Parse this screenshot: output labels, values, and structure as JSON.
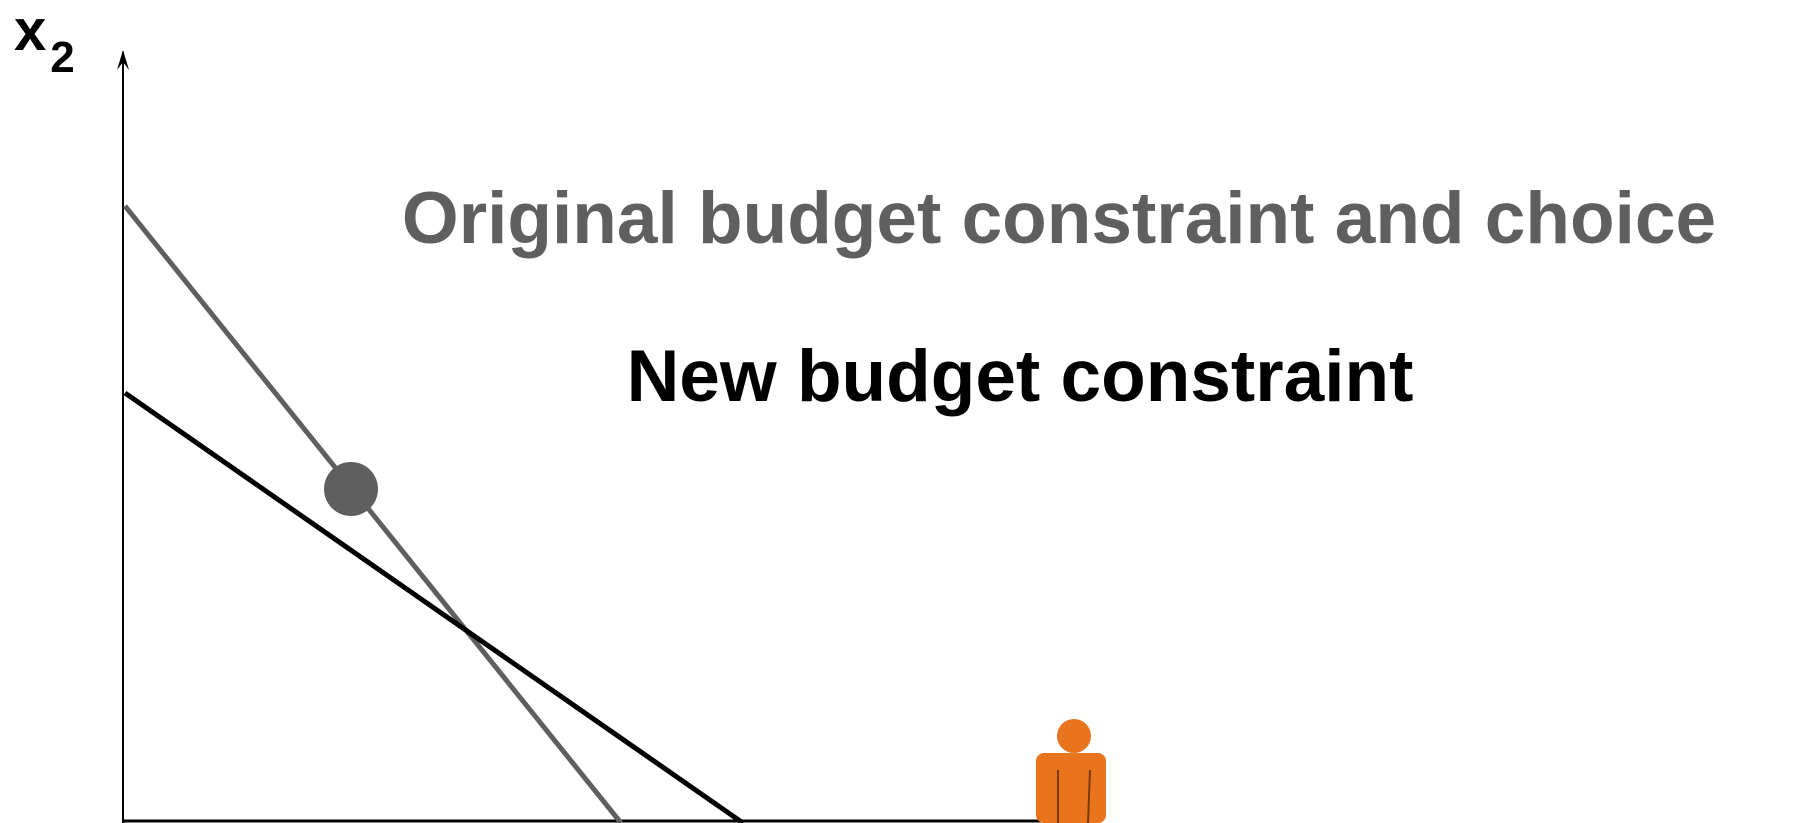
{
  "axis": {
    "y_label": "x",
    "y_label_subscript": "2"
  },
  "labels": {
    "original": "Original budget constraint and choice",
    "new": "New budget constraint"
  }
}
